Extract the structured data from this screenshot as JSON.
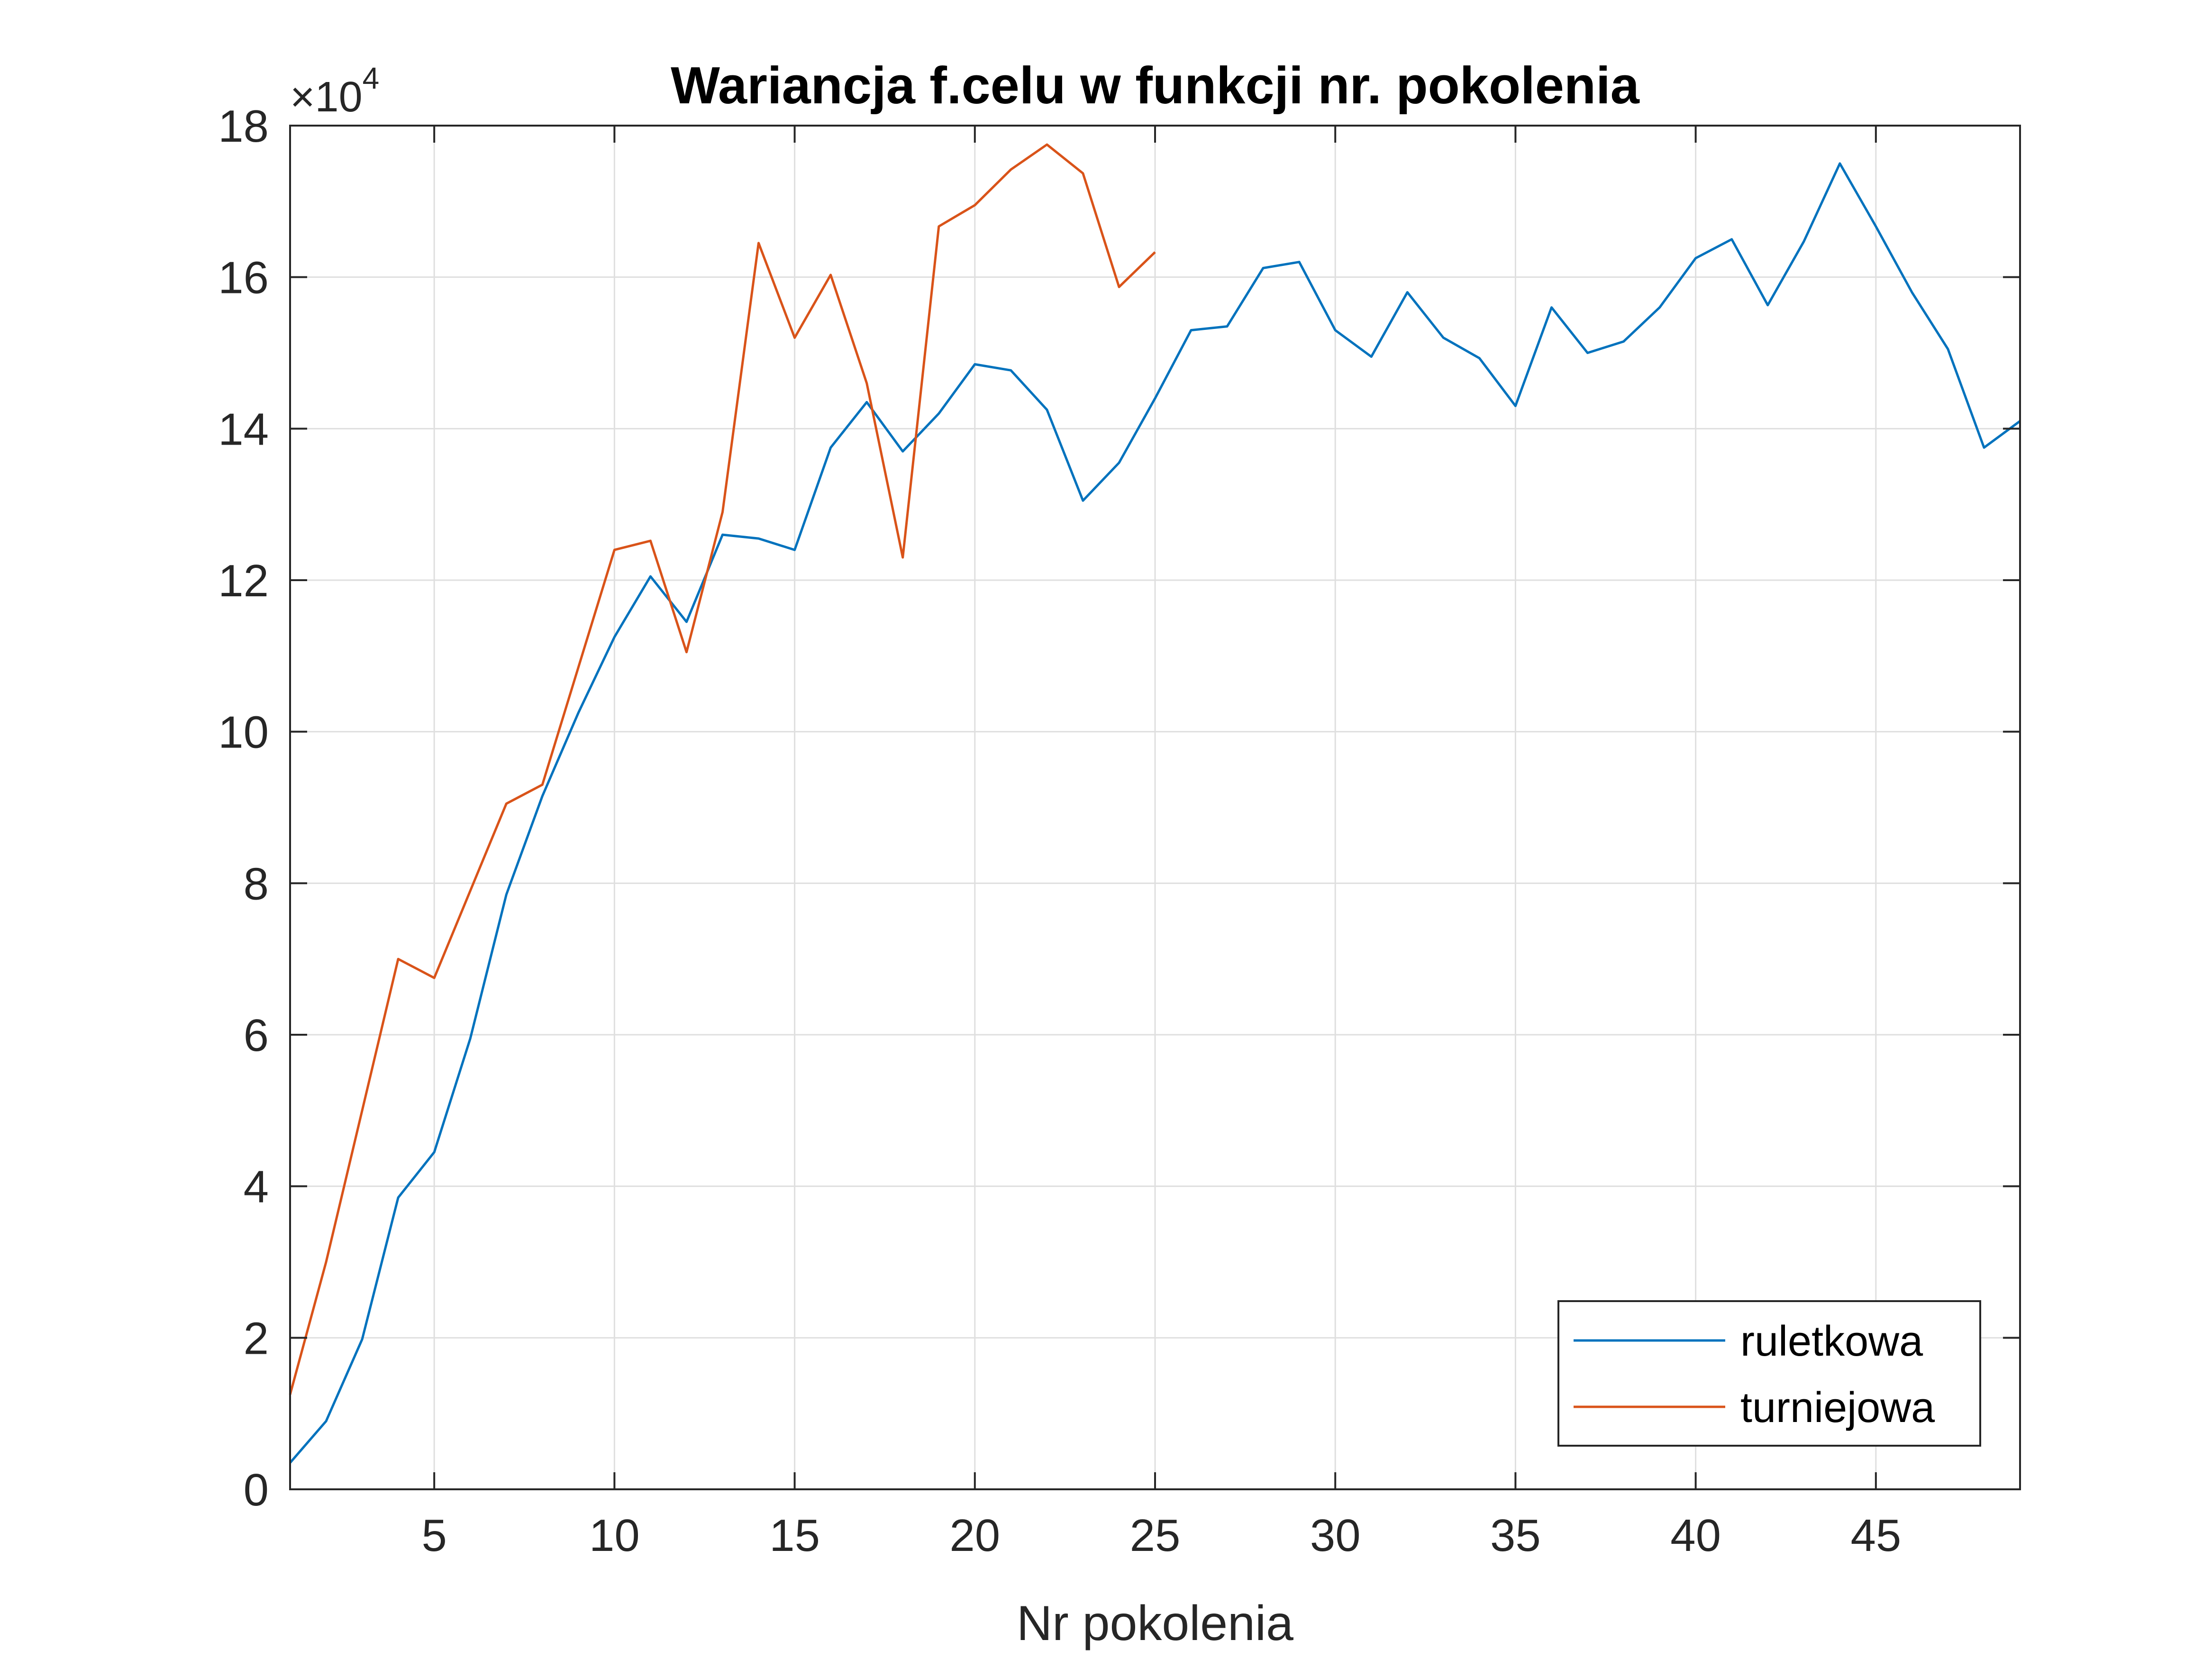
{
  "chart_data": {
    "type": "line",
    "title": "Wariancja f.celu w funkcji nr. pokolenia",
    "xlabel": "Nr pokolenia",
    "ylabel": "",
    "xlim": [
      1,
      49
    ],
    "ylim": [
      0,
      180000
    ],
    "xticks": [
      5,
      10,
      15,
      20,
      25,
      30,
      35,
      40,
      45
    ],
    "xtick_labels": [
      "5",
      "10",
      "15",
      "20",
      "25",
      "30",
      "35",
      "40",
      "45"
    ],
    "yticks": [
      0,
      20000,
      40000,
      60000,
      80000,
      100000,
      120000,
      140000,
      160000,
      180000
    ],
    "ytick_labels": [
      "0",
      "2",
      "4",
      "6",
      "8",
      "10",
      "12",
      "14",
      "16",
      "18"
    ],
    "y_exponent": {
      "prefix": "×10",
      "power": "4"
    },
    "grid": true,
    "legend_position": "bottom-right",
    "series": [
      {
        "name": "ruletkowa",
        "color": "#0072BD",
        "x": [
          1,
          2,
          3,
          4,
          5,
          6,
          7,
          8,
          9,
          10,
          11,
          12,
          13,
          14,
          15,
          16,
          17,
          18,
          19,
          20,
          21,
          22,
          23,
          24,
          25,
          26,
          27,
          28,
          29,
          30,
          31,
          32,
          33,
          34,
          35,
          36,
          37,
          38,
          39,
          40,
          41,
          42,
          43,
          44,
          45,
          46,
          47,
          48,
          49
        ],
        "values": [
          3500,
          9000,
          19800,
          38500,
          44500,
          59500,
          78500,
          91500,
          102500,
          112500,
          120500,
          114500,
          126000,
          125500,
          124000,
          137500,
          143500,
          137000,
          142000,
          148500,
          147700,
          142500,
          130500,
          135500,
          144000,
          153000,
          153500,
          161200,
          162000,
          153000,
          149500,
          158000,
          152000,
          149300,
          143000,
          156000,
          150000,
          151500,
          156000,
          162500,
          165000,
          156300,
          164700,
          175000,
          166700,
          158000,
          150500,
          137500,
          141000
        ]
      },
      {
        "name": "turniejowa",
        "color": "#D95319",
        "x": [
          1,
          2,
          3,
          4,
          5,
          6,
          7,
          8,
          9,
          10,
          11,
          12,
          13,
          14,
          15,
          16,
          17,
          18,
          19,
          20,
          21,
          22,
          23,
          24,
          25
        ],
        "values": [
          12500,
          30000,
          50000,
          70000,
          67500,
          79000,
          90500,
          93000,
          108500,
          124000,
          125200,
          110500,
          129000,
          164500,
          152000,
          160300,
          146000,
          123000,
          166700,
          169500,
          174200,
          177500,
          173700,
          158700,
          163300
        ]
      }
    ]
  }
}
